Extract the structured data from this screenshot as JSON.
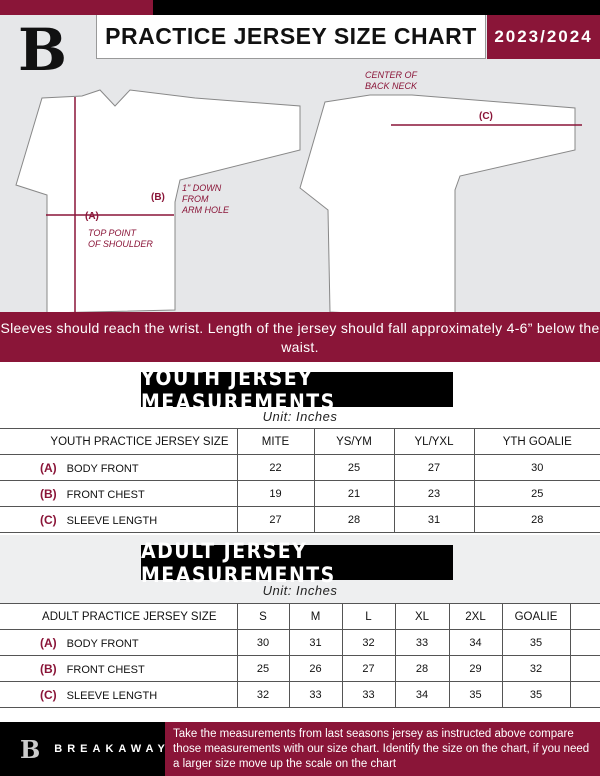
{
  "header": {
    "title": "PRACTICE JERSEY SIZE CHART",
    "season": "2023/2024",
    "logo_letter": "B"
  },
  "diagram": {
    "front": {
      "marker_a": "(A)",
      "note_a": "TOP POINT\nOF SHOULDER",
      "marker_b": "(B)",
      "note_b": "1\" DOWN\nFROM\nARM HOLE"
    },
    "back": {
      "note_c": "CENTER OF\nBACK NECK",
      "marker_c": "(C)"
    }
  },
  "instruction": "Sleeves should reach the wrist. Length of the jersey should fall approximately 4-6” below the waist.",
  "youth": {
    "title": "YOUTH JERSEY MEASUREMENTS",
    "unit": "Unit: Inches",
    "header": "YOUTH PRACTICE JERSEY SIZE",
    "sizes": [
      "MITE",
      "YS/YM",
      "YL/YXL",
      "YTH GOALIE"
    ],
    "rows": [
      {
        "letter": "(A)",
        "label": "BODY FRONT",
        "values": [
          "22",
          "25",
          "27",
          "30"
        ]
      },
      {
        "letter": "(B)",
        "label": "FRONT CHEST",
        "values": [
          "19",
          "21",
          "23",
          "25"
        ]
      },
      {
        "letter": "(C)",
        "label": "SLEEVE LENGTH",
        "values": [
          "27",
          "28",
          "31",
          "28"
        ]
      }
    ]
  },
  "adult": {
    "title": "ADULT JERSEY MEASUREMENTS",
    "unit": "Unit: Inches",
    "header": "ADULT PRACTICE JERSEY SIZE",
    "sizes": [
      "S",
      "M",
      "L",
      "XL",
      "2XL",
      "GOALIE"
    ],
    "rows": [
      {
        "letter": "(A)",
        "label": "BODY FRONT",
        "values": [
          "30",
          "31",
          "32",
          "33",
          "34",
          "35"
        ]
      },
      {
        "letter": "(B)",
        "label": "FRONT CHEST",
        "values": [
          "25",
          "26",
          "27",
          "28",
          "29",
          "32"
        ]
      },
      {
        "letter": "(C)",
        "label": "SLEEVE LENGTH",
        "values": [
          "32",
          "33",
          "33",
          "34",
          "35",
          "35"
        ]
      }
    ]
  },
  "footer": {
    "brand": "BREAKAWAY",
    "text": "Take the measurements from last seasons jersey as instructed above compare those measurements  with our size chart. Identify the size on the chart, if you need a larger size move up the scale on the chart"
  },
  "colors": {
    "brand": "#8a1538",
    "dark": "#000000",
    "background": "#e6e7e9"
  }
}
